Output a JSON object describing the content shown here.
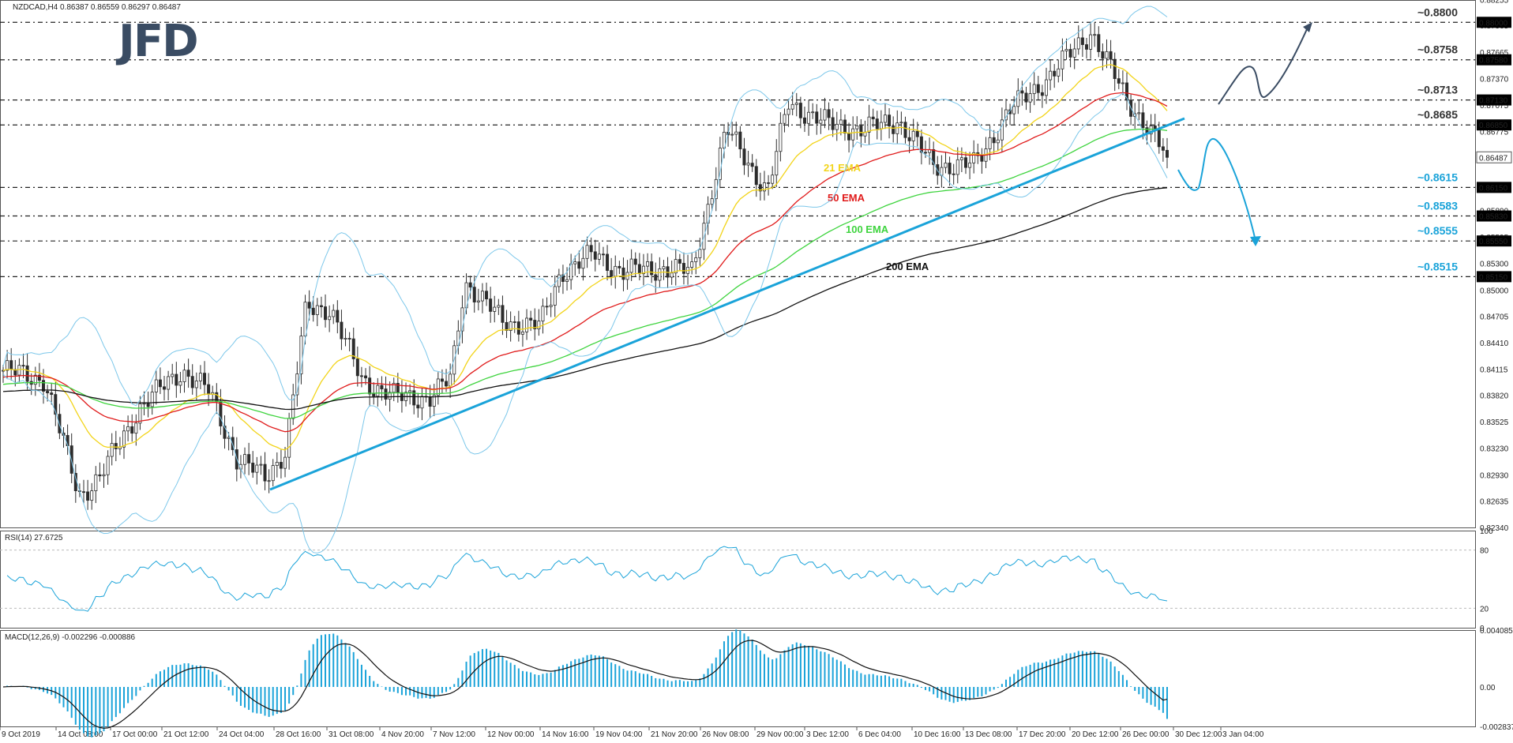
{
  "chart_data": [
    {
      "type": "candlestick",
      "title": "NZDCAD,H4  0.86387 0.86559 0.86297 0.86487",
      "ylim": [
        0.8234,
        0.8825
      ],
      "y_ticks": [
        "0.88255",
        "0.87965",
        "0.87665",
        "0.87370",
        "0.87075",
        "0.86775",
        "0.86480",
        "0.86185",
        "0.85890",
        "0.85595",
        "0.85300",
        "0.85000",
        "0.84705",
        "0.84410",
        "0.84115",
        "0.83820",
        "0.83525",
        "0.83230",
        "0.82930",
        "0.82635",
        "0.82340"
      ],
      "x_ticks": [
        "9 Oct 2019",
        "14 Oct 08:00",
        "17 Oct 00:00",
        "21 Oct 12:00",
        "24 Oct 04:00",
        "28 Oct 16:00",
        "31 Oct 08:00",
        "4 Nov 20:00",
        "7 Nov 12:00",
        "12 Nov 00:00",
        "14 Nov 16:00",
        "19 Nov 04:00",
        "21 Nov 20:00",
        "26 Nov 08:00",
        "29 Nov 00:00",
        "3 Dec 12:00",
        "6 Dec 04:00",
        "10 Dec 16:00",
        "13 Dec 08:00",
        "17 Dec 20:00",
        "20 Dec 12:00",
        "26 Dec 00:00",
        "30 Dec 12:00",
        "3 Jan 04:00"
      ],
      "levels": [
        {
          "label": "~0.8800",
          "value": 0.88,
          "box": "0.88000",
          "color": "#333333"
        },
        {
          "label": "~0.8758",
          "value": 0.8758,
          "box": "0.87580",
          "color": "#333333"
        },
        {
          "label": "~0.8713",
          "value": 0.8713,
          "box": "0.87130",
          "color": "#333333"
        },
        {
          "label": "~0.8685",
          "value": 0.8685,
          "box": "0.86850",
          "color": "#333333"
        },
        {
          "label": "~0.8615",
          "value": 0.8615,
          "box": "0.86150",
          "color": "#1aa3d9"
        },
        {
          "label": "~0.8583",
          "value": 0.8583,
          "box": "0.85830",
          "color": "#1aa3d9"
        },
        {
          "label": "~0.8555",
          "value": 0.8555,
          "box": "0.85550",
          "color": "#1aa3d9"
        },
        {
          "label": "~0.8515",
          "value": 0.8515,
          "box": "0.85150",
          "color": "#1aa3d9"
        }
      ],
      "current_price": {
        "value": 0.86487,
        "label": "0.86487"
      },
      "ema_series": [
        {
          "name": "21 EMA",
          "color": "#f2d41a"
        },
        {
          "name": "50 EMA",
          "color": "#e01b1b"
        },
        {
          "name": "100 EMA",
          "color": "#3fd43f"
        },
        {
          "name": "200 EMA",
          "color": "#111111"
        }
      ],
      "candle_color": "#2c2c2c",
      "line_color": "#1aa3d9"
    },
    {
      "type": "line",
      "title": "RSI(14) 27.6725",
      "ylim": [
        0,
        100
      ],
      "y_ticks": [
        "100",
        "80",
        "20",
        "0"
      ],
      "levels": [
        80,
        20
      ],
      "current": 27.6725
    },
    {
      "type": "bar",
      "title": "MACD(12,26,9) -0.002296 -0.000886",
      "ylim": [
        -0.002837,
        0.004085
      ],
      "y_ticks": [
        "0.004085",
        "0.00",
        "-0.002837"
      ],
      "macd": -0.002296,
      "signal": -0.000886
    }
  ],
  "logo": "JFD"
}
